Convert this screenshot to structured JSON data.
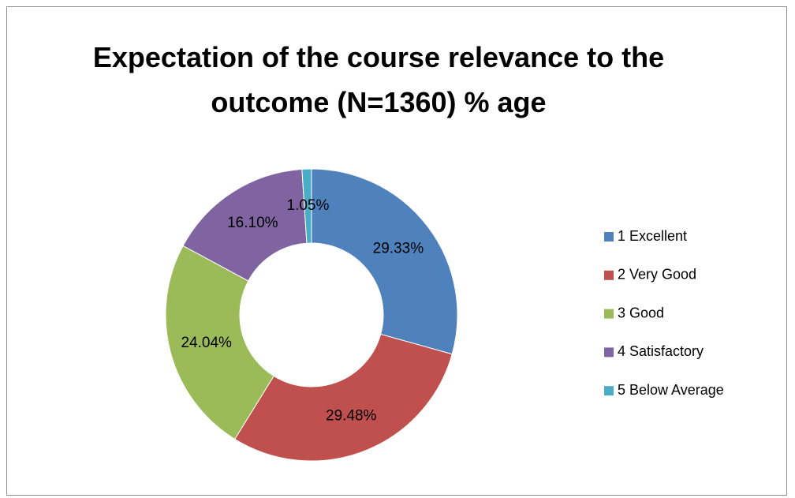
{
  "chart_data": {
    "type": "donut",
    "title": "Expectation of the course relevance to the outcome (N=1360) % age",
    "categories": [
      "1 Excellent",
      "2 Very Good",
      "3 Good",
      "4 Satisfactory",
      "5 Below Average"
    ],
    "values": [
      29.33,
      29.48,
      24.04,
      16.1,
      1.05
    ],
    "value_labels": [
      "29.33%",
      "29.48%",
      "24.04%",
      "16.10%",
      "1.05%"
    ],
    "colors": [
      "#4f81bd",
      "#c0504d",
      "#9bbb59",
      "#8064a2",
      "#4bacc6"
    ],
    "legend": "right"
  }
}
